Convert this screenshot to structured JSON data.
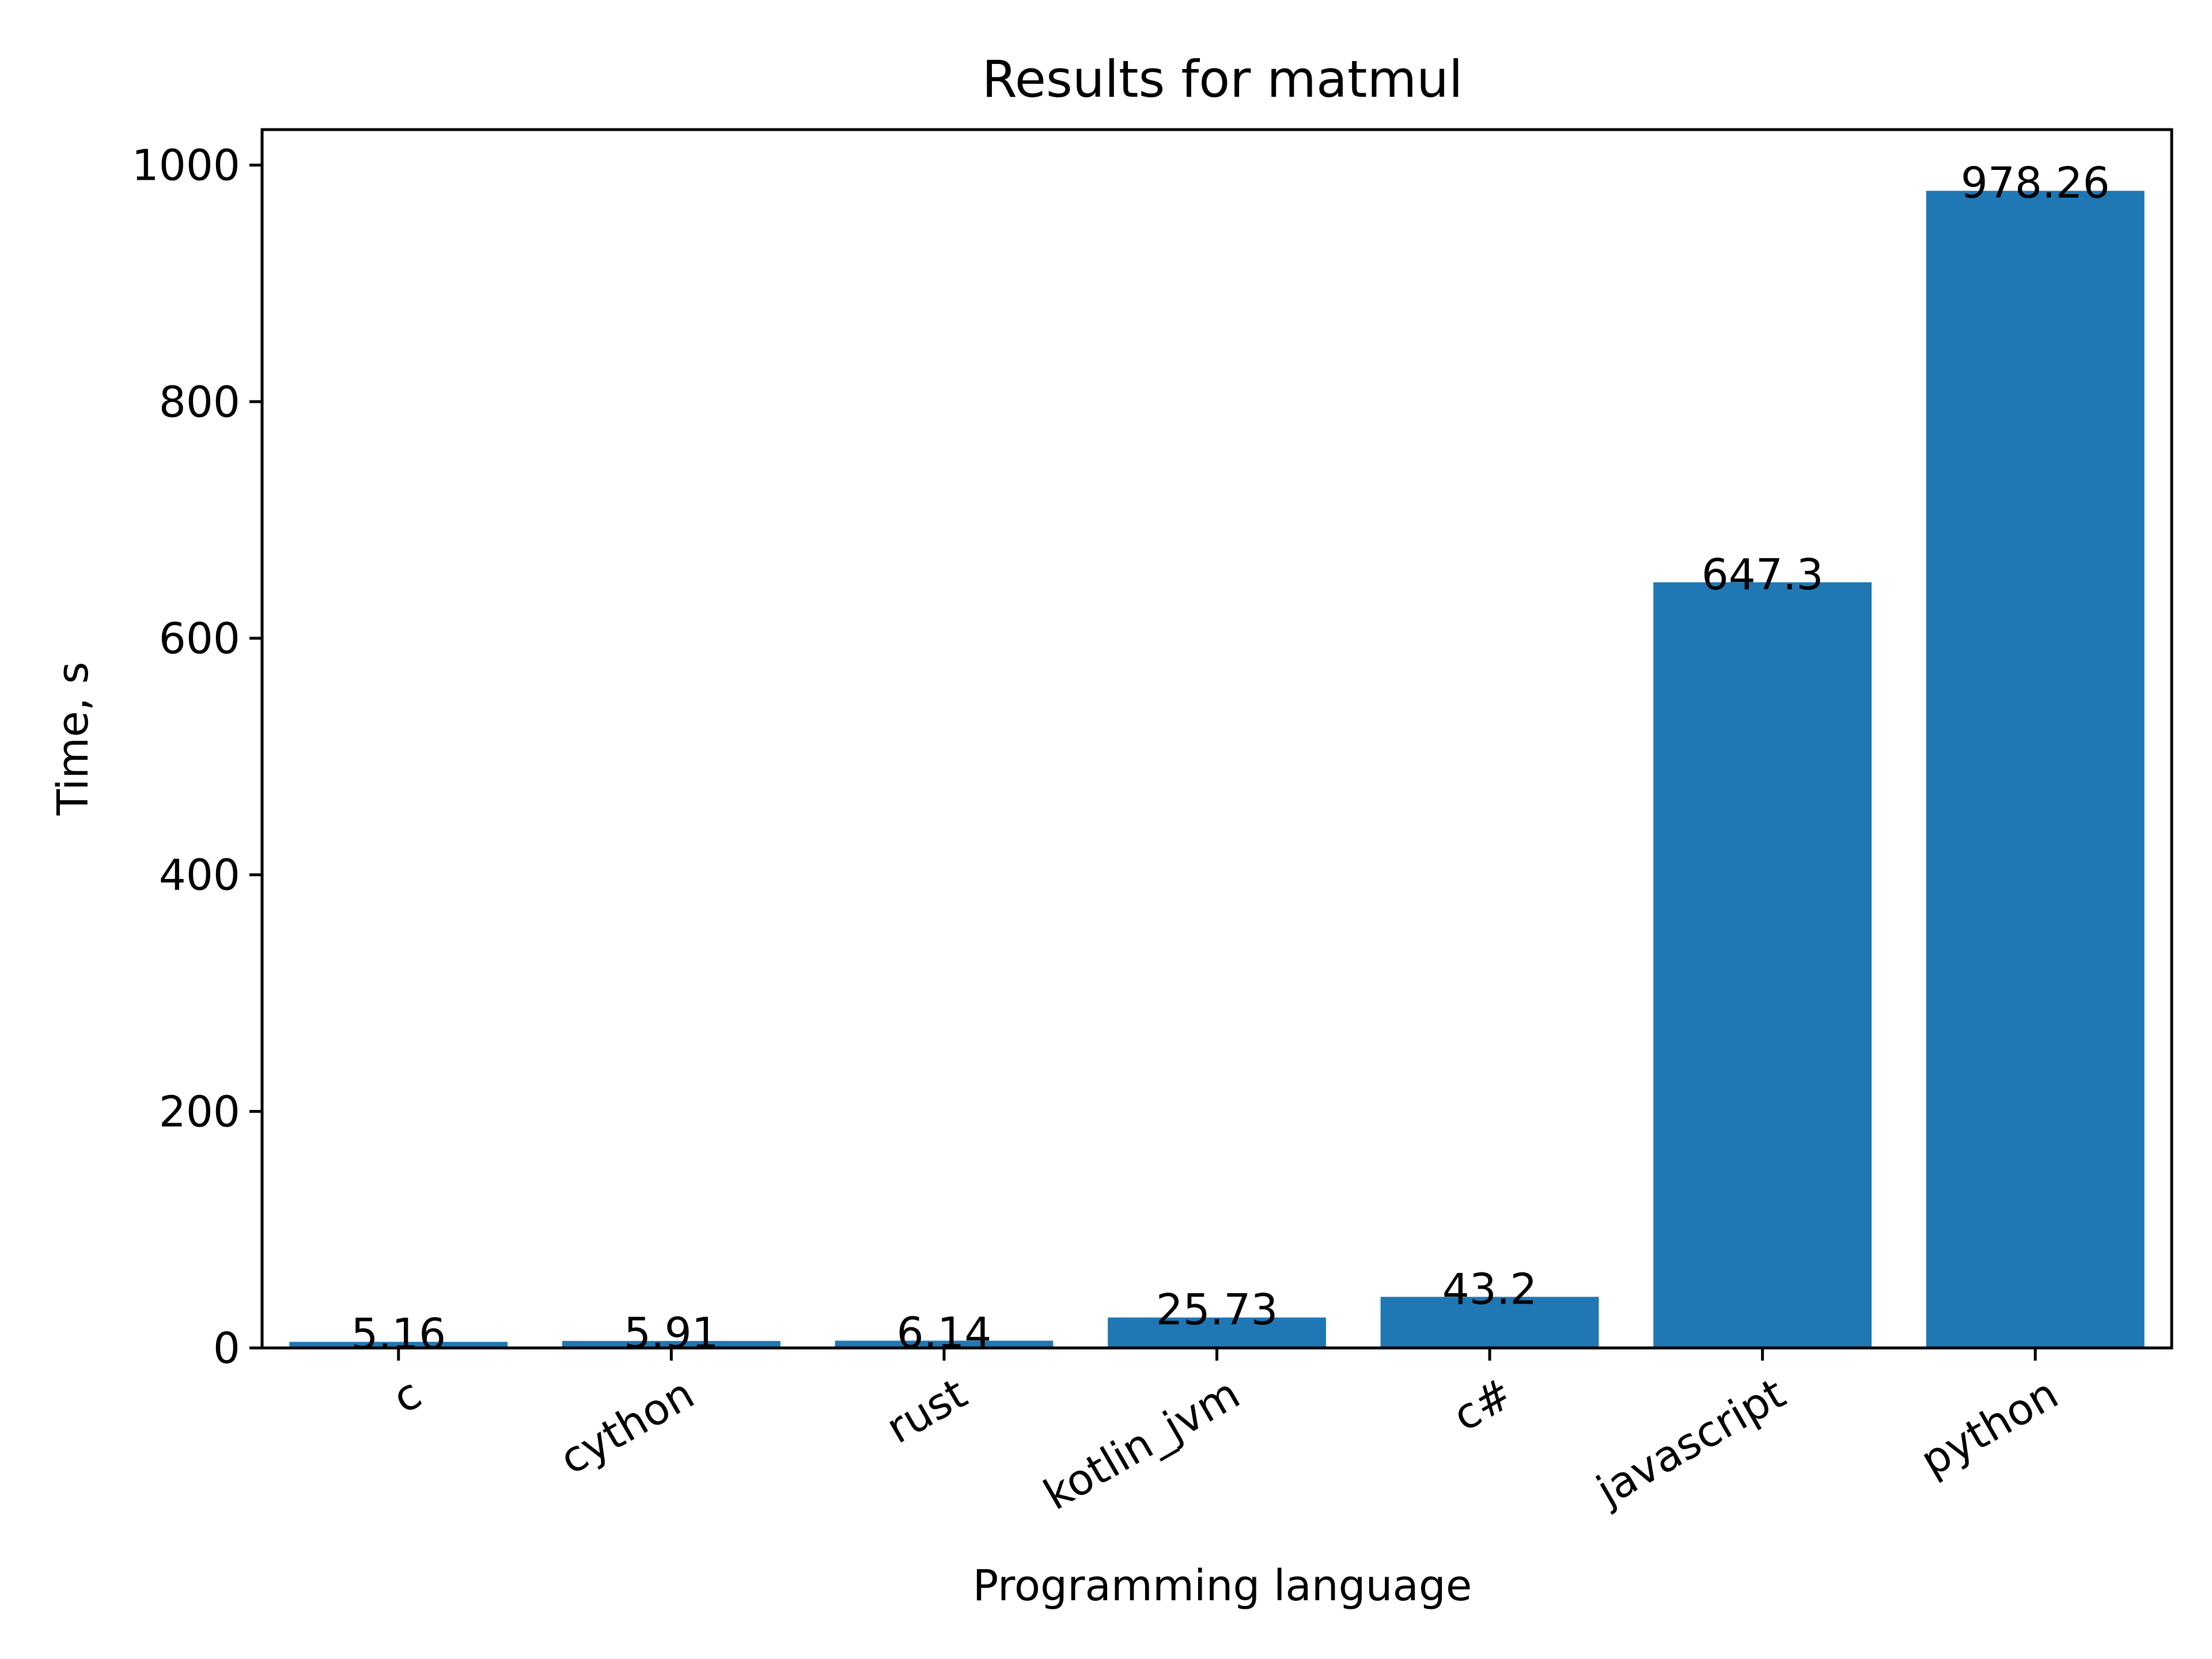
{
  "chart_data": {
    "type": "bar",
    "title": "Results for matmul",
    "xlabel": "Programming language",
    "ylabel": "Time, s",
    "categories": [
      "c",
      "cython",
      "rust",
      "kotlin_jvm",
      "c#",
      "javascript",
      "python"
    ],
    "values": [
      5.16,
      5.91,
      6.14,
      25.73,
      43.2,
      647.3,
      978.26
    ],
    "value_labels": [
      "5.16",
      "5.91",
      "6.14",
      "25.73",
      "43.2",
      "647.3",
      "978.26"
    ],
    "ylim": [
      0,
      1030
    ],
    "yticks": [
      0,
      200,
      400,
      600,
      800,
      1000
    ],
    "bar_color": "#1f77b4",
    "grid": false,
    "legend": false
  }
}
